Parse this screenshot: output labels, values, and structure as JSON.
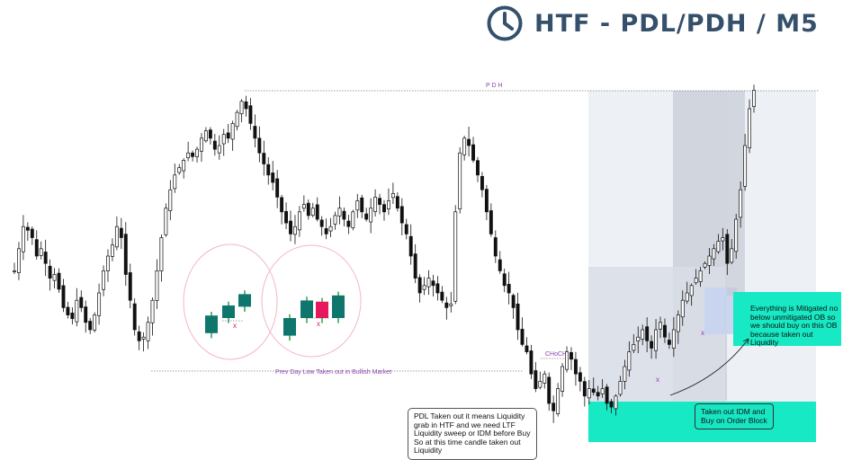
{
  "title": {
    "text": "HTF -  PDL/PDH / M5",
    "icon": "clock-icon",
    "color": "#35506b"
  },
  "colors": {
    "bull_candle": "#0f766e",
    "bear_candle": "#e8185f",
    "chart_candle": "#111111",
    "zone_teal": "#16e9c4",
    "zone_grey": "#dfe3ea",
    "annotation_purple": "#8e44ad"
  },
  "chart_data": {
    "type": "candlestick",
    "title": "",
    "xlabel": "",
    "ylabel": "",
    "ylim": [
      0,
      100
    ],
    "grid": false,
    "levels": [
      {
        "name": "PDH",
        "label": "P D H",
        "y": 94
      },
      {
        "name": "PDL",
        "label": "Prev Day Low Taken out in Bullish Market",
        "y": 20
      }
    ],
    "annotations": [
      {
        "label": "CHoCH",
        "y": 24
      },
      {
        "label": "x",
        "y": 32
      },
      {
        "label": "x",
        "y": 26
      },
      {
        "label": "x",
        "y": 42
      },
      {
        "label": "x",
        "y": 42
      }
    ],
    "close_path": [
      46,
      52,
      58,
      57,
      55,
      50,
      52,
      48,
      44,
      45,
      41,
      36,
      34,
      33,
      38,
      36,
      32,
      30,
      34,
      40,
      46,
      50,
      53,
      58,
      55,
      45,
      38,
      30,
      27,
      28,
      32,
      38,
      46,
      55,
      63,
      68,
      72,
      74,
      76,
      78,
      77,
      79,
      82,
      84,
      82,
      79,
      80,
      83,
      82,
      86,
      89,
      92,
      90,
      86,
      82,
      78,
      75,
      72,
      70,
      66,
      62,
      59,
      56,
      58,
      62,
      64,
      61,
      63,
      60,
      58,
      56,
      58,
      61,
      63,
      60,
      58,
      62,
      65,
      62,
      60,
      63,
      66,
      64,
      62,
      65,
      67,
      63,
      59,
      56,
      50,
      44,
      40,
      42,
      44,
      42,
      40,
      38,
      36,
      37,
      62,
      78,
      82,
      80,
      76,
      72,
      68,
      62,
      56,
      50,
      46,
      42,
      40,
      36,
      30,
      26,
      24,
      18,
      14,
      16,
      18,
      10,
      8,
      14,
      20,
      24,
      22,
      18,
      16,
      12,
      14,
      13,
      12,
      14,
      10,
      9,
      12,
      16,
      20,
      24,
      26,
      28,
      30,
      27,
      25,
      30,
      32,
      28,
      26,
      30,
      34,
      38,
      40,
      42,
      44,
      46,
      48,
      50,
      52,
      54,
      55,
      48,
      52,
      60,
      68,
      80,
      90,
      95
    ],
    "illustration_candles": [
      {
        "group": 1,
        "direction": "bull",
        "open": 28,
        "close": 42
      },
      {
        "group": 1,
        "direction": "bull",
        "open": 40,
        "close": 50
      },
      {
        "group": 1,
        "direction": "bull",
        "open": 49,
        "close": 59
      },
      {
        "group": 2,
        "direction": "bull",
        "open": 26,
        "close": 40
      },
      {
        "group": 2,
        "direction": "bull",
        "open": 40,
        "close": 54
      },
      {
        "group": 2,
        "direction": "bear",
        "open": 53,
        "close": 40
      },
      {
        "group": 2,
        "direction": "bull",
        "open": 40,
        "close": 58
      }
    ]
  },
  "callouts": {
    "pdl_note": "PDL Taken out it means Liquidity grab in HTF and we need LTF Liquidity sweep or IDM before Buy So at this time candle taken out Liquidity",
    "idm_note": "Taken out IDM and Buy on Order Block",
    "mitigated_note": "Everything is Mitigated  no below unmitigated OB so we should buy on this OB because taken out Liquidity"
  }
}
